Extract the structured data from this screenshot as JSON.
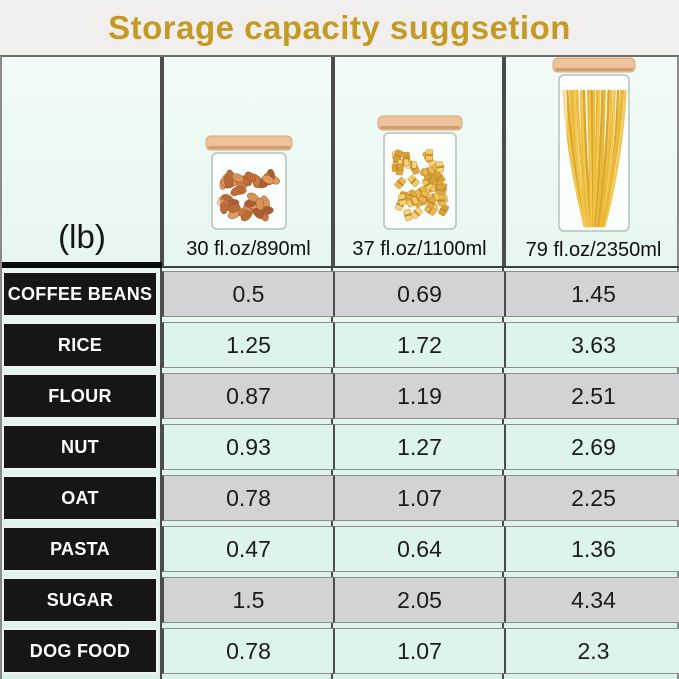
{
  "title": "Storage capacity suggsetion",
  "unit_label": "(lb)",
  "columns": [
    {
      "capacity": "30 fl.oz/890ml",
      "jar": "almonds-jar",
      "contents": "almonds"
    },
    {
      "capacity": "37 fl.oz/1100ml",
      "jar": "farfalle-pasta-jar",
      "contents": "farfalle"
    },
    {
      "capacity": "79 fl.oz/2350ml",
      "jar": "spaghetti-jar",
      "contents": "spaghetti"
    }
  ],
  "rows": [
    {
      "label": "COFFEE BEANS",
      "values": [
        "0.5",
        "0.69",
        "1.45"
      ]
    },
    {
      "label": "RICE",
      "values": [
        "1.25",
        "1.72",
        "3.63"
      ]
    },
    {
      "label": "FLOUR",
      "values": [
        "0.87",
        "1.19",
        "2.51"
      ]
    },
    {
      "label": "NUT",
      "values": [
        "0.93",
        "1.27",
        "2.69"
      ]
    },
    {
      "label": "OAT",
      "values": [
        "0.78",
        "1.07",
        "2.25"
      ]
    },
    {
      "label": "PASTA",
      "values": [
        "0.47",
        "0.64",
        "1.36"
      ]
    },
    {
      "label": "SUGAR",
      "values": [
        "1.5",
        "2.05",
        "4.34"
      ]
    },
    {
      "label": "DOG FOOD",
      "values": [
        "0.78",
        "1.07",
        "2.3"
      ]
    }
  ],
  "colors": {
    "title": "#c49a24",
    "mint_row": "#ddf4ea",
    "gray_row": "#d3d3d5",
    "label_bg": "#161616",
    "label_text": "#ffffff",
    "divider": "#4c4c4c",
    "lid_wood": "#eec39a"
  },
  "chart_data": {
    "type": "table",
    "title": "Storage capacity suggsetion",
    "unit": "(lb)",
    "columns": [
      "30 fl.oz/890ml",
      "37 fl.oz/1100ml",
      "79 fl.oz/2350ml"
    ],
    "rows": [
      {
        "label": "COFFEE BEANS",
        "values": [
          0.5,
          0.69,
          1.45
        ]
      },
      {
        "label": "RICE",
        "values": [
          1.25,
          1.72,
          3.63
        ]
      },
      {
        "label": "FLOUR",
        "values": [
          0.87,
          1.19,
          2.51
        ]
      },
      {
        "label": "NUT",
        "values": [
          0.93,
          1.27,
          2.69
        ]
      },
      {
        "label": "OAT",
        "values": [
          0.78,
          1.07,
          2.25
        ]
      },
      {
        "label": "PASTA",
        "values": [
          0.47,
          0.64,
          1.36
        ]
      },
      {
        "label": "SUGAR",
        "values": [
          1.5,
          2.05,
          4.34
        ]
      },
      {
        "label": "DOG FOOD",
        "values": [
          0.78,
          1.07,
          2.3
        ]
      }
    ]
  }
}
